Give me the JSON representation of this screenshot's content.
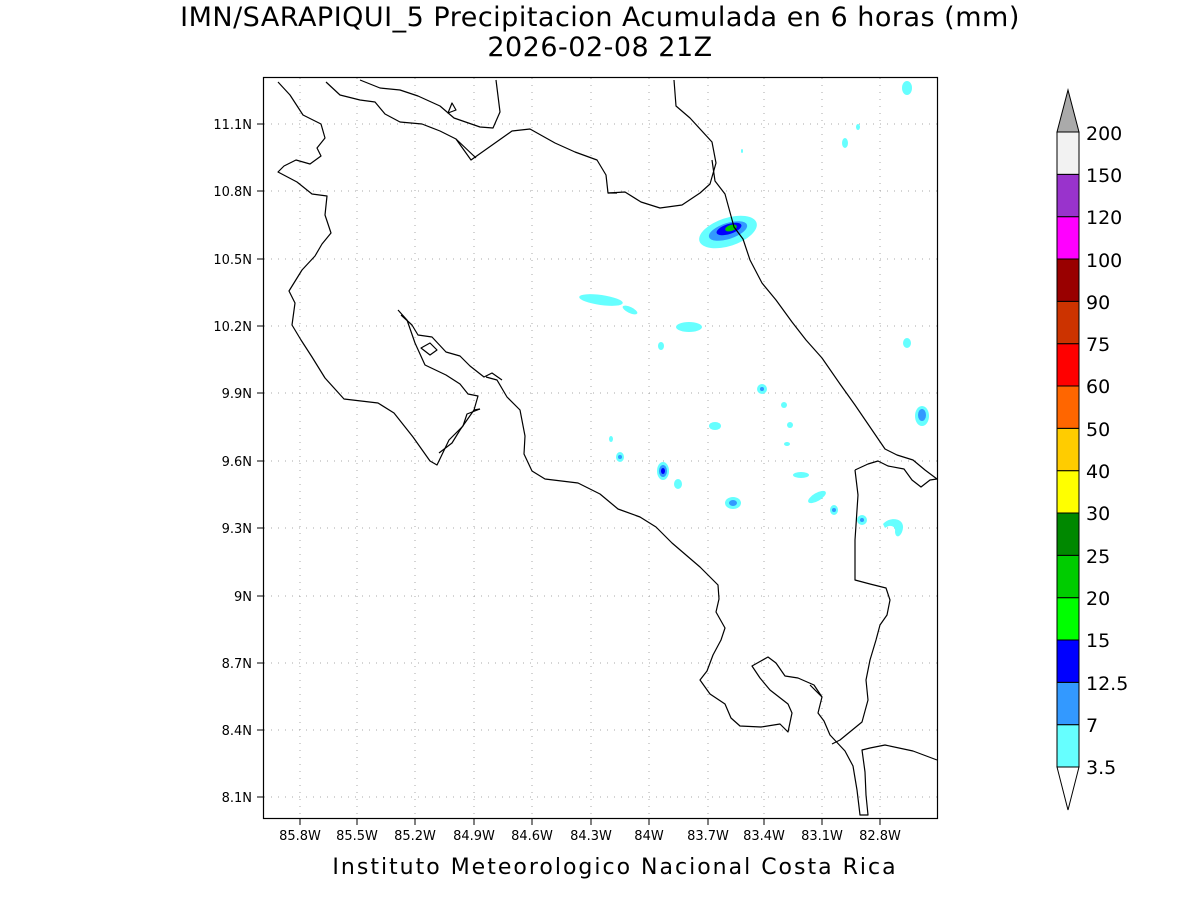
{
  "title": {
    "line1": "IMN/SARAPIQUI_5 Precipitacion Acumulada en 6 horas (mm)",
    "line2": "2026-02-08 21Z"
  },
  "footer": "Instituto Meteorologico Nacional Costa Rica",
  "axes": {
    "lon_ticks": [
      "85.8W",
      "85.5W",
      "85.2W",
      "84.9W",
      "84.6W",
      "84.3W",
      "84W",
      "83.7W",
      "83.4W",
      "83.1W",
      "82.8W"
    ],
    "lat_ticks": [
      "11.1N",
      "10.8N",
      "10.5N",
      "10.2N",
      "9.9N",
      "9.6N",
      "9.3N",
      "9N",
      "8.7N",
      "8.4N",
      "8.1N"
    ]
  },
  "colorbar": {
    "labels": [
      "3.5",
      "7",
      "12.5",
      "15",
      "20",
      "25",
      "30",
      "40",
      "50",
      "60",
      "75",
      "90",
      "100",
      "120",
      "150",
      "200"
    ],
    "colors": [
      "#66ffff",
      "#3399ff",
      "#0000ff",
      "#00ff00",
      "#00cc00",
      "#008800",
      "#ffff00",
      "#ffcc00",
      "#ff6600",
      "#ff0000",
      "#cc3300",
      "#990000",
      "#ff00ff",
      "#9933cc",
      "#f2f2f2",
      "#aaaaaa"
    ],
    "min_color": "#ffffff",
    "max_color": "#aaaaaa"
  },
  "chart_data": {
    "type": "heatmap",
    "x_range": [
      -86.0,
      -82.5
    ],
    "y_range": [
      8.0,
      11.2
    ],
    "precip_cells": [
      {
        "lon": -83.6,
        "lat": 10.64,
        "mm": 20
      },
      {
        "lon": -84.2,
        "lat": 10.32,
        "mm": 3.5
      },
      {
        "lon": -83.78,
        "lat": 10.2,
        "mm": 3.5
      },
      {
        "lon": -83.87,
        "lat": 9.55,
        "mm": 12.5
      },
      {
        "lon": -84.15,
        "lat": 9.61,
        "mm": 7
      },
      {
        "lon": -83.58,
        "lat": 9.41,
        "mm": 7
      },
      {
        "lon": -83.42,
        "lat": 9.92,
        "mm": 7
      },
      {
        "lon": -82.62,
        "lat": 9.8,
        "mm": 7
      },
      {
        "lon": -83.07,
        "lat": 9.38,
        "mm": 7
      },
      {
        "lon": -82.92,
        "lat": 9.33,
        "mm": 7
      },
      {
        "lon": -83.25,
        "lat": 9.53,
        "mm": 3.5
      },
      {
        "lon": -83.15,
        "lat": 9.44,
        "mm": 3.5
      },
      {
        "lon": -82.78,
        "lat": 9.32,
        "mm": 3.5
      },
      {
        "lon": -82.7,
        "lat": 10.13,
        "mm": 3.5
      }
    ]
  }
}
